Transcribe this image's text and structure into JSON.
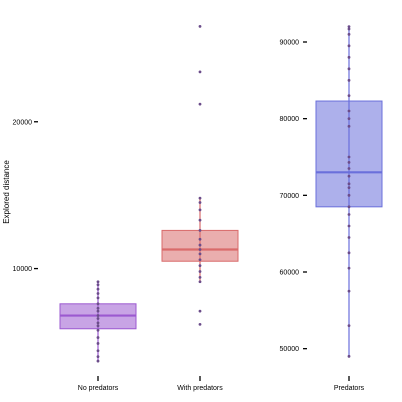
{
  "chart_data": [
    {
      "type": "box",
      "ylabel": "Explored distance",
      "yticks": [
        10000,
        20000
      ],
      "ytick_labels": [
        "10000",
        "20000"
      ],
      "ylim": [
        3500,
        27000
      ],
      "categories": [
        "No predators",
        "With predators"
      ],
      "boxes": [
        {
          "name": "No predators",
          "color": "#9b59d0",
          "q1": 5900,
          "median": 6800,
          "q3": 7600,
          "whisker_low": 3700,
          "whisker_high": 9100,
          "points": [
            3700,
            4000,
            4400,
            4900,
            5300,
            5800,
            6100,
            6300,
            6600,
            6800,
            7100,
            7300,
            7600,
            8000,
            8300,
            8600,
            8900,
            9100
          ],
          "outliers": []
        },
        {
          "name": "With predators",
          "color": "#d96b6b",
          "q1": 10500,
          "median": 11300,
          "q3": 12600,
          "whisker_low": 9100,
          "whisker_high": 14800,
          "points": [
            9100,
            9400,
            9800,
            10200,
            10600,
            11000,
            11300,
            11600,
            12000,
            12600,
            13300,
            14000,
            14500,
            14800
          ],
          "outliers": [
            6200,
            7100,
            21200,
            23400,
            26500
          ]
        }
      ]
    },
    {
      "type": "box",
      "yticks": [
        50000,
        60000,
        70000,
        80000,
        90000
      ],
      "ytick_labels": [
        "50000",
        "60000",
        "70000",
        "80000",
        "90000"
      ],
      "ylim": [
        48000,
        93000
      ],
      "categories": [
        "Predators"
      ],
      "boxes": [
        {
          "name": "Predators",
          "color": "#6a6fdb",
          "q1": 68500,
          "median": 73000,
          "q3": 82300,
          "whisker_low": 49000,
          "whisker_high": 92000,
          "points": [
            49000,
            53000,
            57500,
            60500,
            62500,
            64500,
            66000,
            67500,
            68500,
            70000,
            71000,
            71500,
            72500,
            73500,
            74300,
            75000,
            79000,
            80000,
            81000,
            83000,
            85000,
            86500,
            88000,
            89500,
            91000,
            91700,
            92000
          ],
          "outliers": []
        }
      ]
    }
  ]
}
